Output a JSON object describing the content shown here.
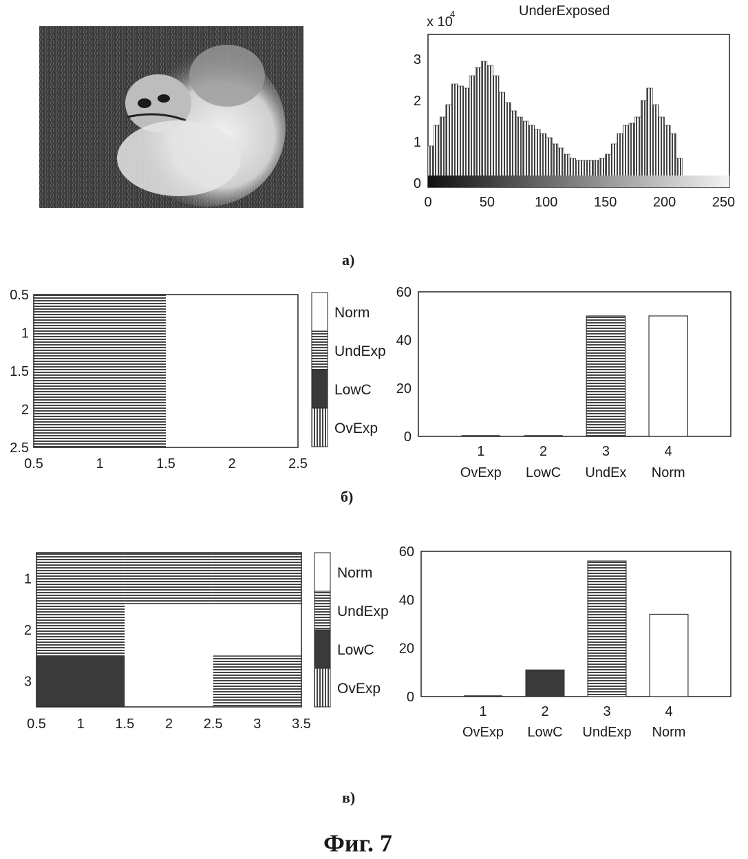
{
  "figure": {
    "caption": "Фиг. 7",
    "panel_labels": [
      "а)",
      "б)",
      "в)"
    ]
  },
  "photo": {
    "description_icon": "cat-photo"
  },
  "chart_data": [
    {
      "type": "bar",
      "id": "histogram",
      "title": "UnderExposed",
      "y_multiplier": "x 10",
      "y_multiplier_exp": "4",
      "xlim": [
        0,
        255
      ],
      "ylim": [
        -0.1,
        3.6
      ],
      "xticks": [
        0,
        50,
        100,
        150,
        200,
        250
      ],
      "yticks": [
        0,
        1,
        2,
        3
      ],
      "x": [
        0,
        5,
        10,
        15,
        20,
        25,
        30,
        35,
        40,
        45,
        50,
        55,
        60,
        65,
        70,
        75,
        80,
        85,
        90,
        95,
        100,
        105,
        110,
        115,
        120,
        125,
        130,
        135,
        140,
        145,
        150,
        155,
        160,
        165,
        170,
        175,
        180,
        185,
        190,
        195,
        200,
        205,
        210,
        215,
        220,
        230,
        240,
        255
      ],
      "values": [
        0.9,
        1.4,
        1.6,
        1.9,
        2.4,
        2.35,
        2.3,
        2.6,
        2.8,
        2.95,
        2.85,
        2.6,
        2.2,
        1.95,
        1.75,
        1.6,
        1.5,
        1.4,
        1.3,
        1.2,
        1.1,
        0.95,
        0.85,
        0.7,
        0.6,
        0.55,
        0.55,
        0.55,
        0.55,
        0.6,
        0.7,
        0.95,
        1.2,
        1.4,
        1.45,
        1.6,
        2.0,
        2.3,
        1.9,
        1.6,
        1.4,
        1.2,
        0.6,
        0.1,
        0.0,
        0.0,
        0.0,
        0.0
      ]
    },
    {
      "type": "heatmap",
      "id": "map-b",
      "xlim": [
        0.5,
        2.5
      ],
      "ylim": [
        0.5,
        2.5
      ],
      "xticks": [
        0.5,
        1,
        1.5,
        2,
        2.5
      ],
      "yticks": [
        0.5,
        1,
        1.5,
        2,
        2.5
      ],
      "cells": [
        [
          "UndExp",
          "Norm"
        ]
      ],
      "legend": [
        "Norm",
        "UndExp",
        "LowC",
        "OvExp"
      ]
    },
    {
      "type": "bar",
      "id": "bars-b",
      "categories": [
        "1",
        "2",
        "3",
        "4"
      ],
      "category_labels": [
        "OvExp",
        "LowC",
        "UndEx",
        "Norm"
      ],
      "classes": [
        "OvExp",
        "LowC",
        "UndExp",
        "Norm"
      ],
      "values": [
        0,
        0,
        50,
        50
      ],
      "ylim": [
        0,
        60
      ],
      "yticks": [
        0,
        20,
        40,
        60
      ]
    },
    {
      "type": "heatmap",
      "id": "map-c",
      "xlim": [
        0.5,
        3.5
      ],
      "ylim": [
        0.5,
        3.5
      ],
      "xticks": [
        0.5,
        1,
        1.5,
        2,
        2.5,
        3,
        3.5
      ],
      "yticks": [
        1,
        2,
        3
      ],
      "cells": [
        [
          "UndExp",
          "UndExp",
          "UndExp"
        ],
        [
          "UndExp",
          "Norm",
          "Norm"
        ],
        [
          "LowC",
          "Norm",
          "UndExp"
        ]
      ],
      "legend": [
        "Norm",
        "UndExp",
        "LowC",
        "OvExp"
      ]
    },
    {
      "type": "bar",
      "id": "bars-c",
      "categories": [
        "1",
        "2",
        "3",
        "4"
      ],
      "category_labels": [
        "OvExp",
        "LowC",
        "UndExp",
        "Norm"
      ],
      "classes": [
        "OvExp",
        "LowC",
        "UndExp",
        "Norm"
      ],
      "values": [
        0,
        11,
        56,
        34
      ],
      "ylim": [
        0,
        60
      ],
      "yticks": [
        0,
        20,
        40,
        60
      ]
    }
  ]
}
